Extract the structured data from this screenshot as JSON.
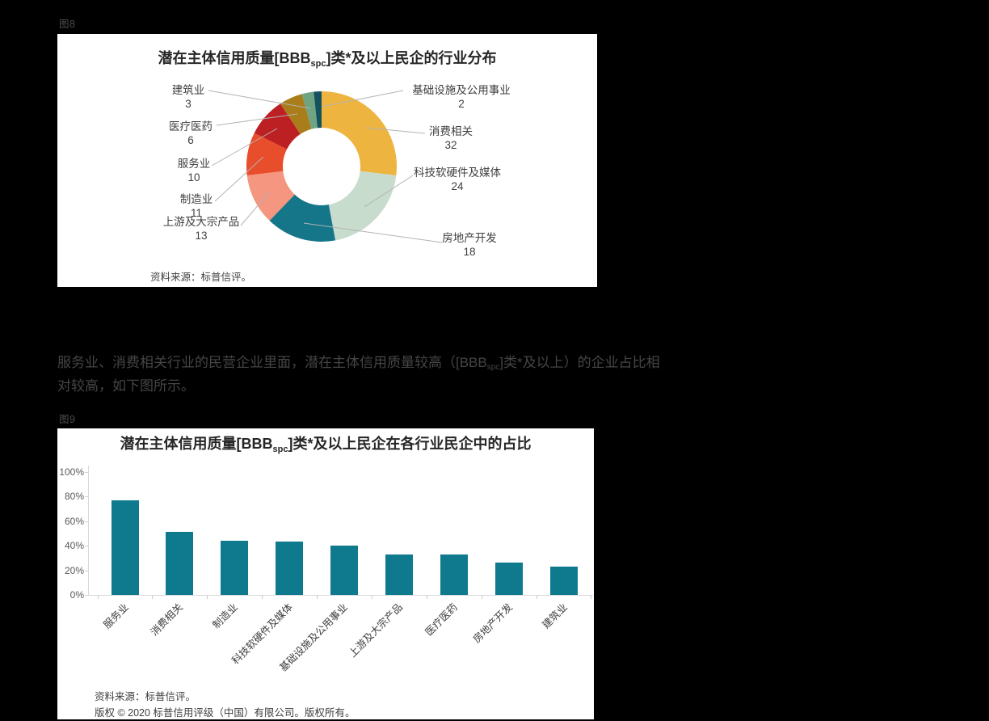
{
  "page": {
    "fig8_caption": "图8",
    "fig9_caption": "图9",
    "paragraph": {
      "line1_pre": "服务业、消费相关行业的民营企业里面，潜在主体信用质量较高（[BBB",
      "line1_sub": "spc",
      "line1_post": "]类*及以上）的企业占比相",
      "line2": "对较高，如下图所示。"
    }
  },
  "chart_data": [
    {
      "id": "figure-8",
      "type": "pie",
      "style": "donut",
      "title_pre": "潜在主体信用质量[BBB",
      "title_sub": "spc",
      "title_post": "]类*及以上民企的行业分布",
      "direction": "clockwise",
      "start_angle_deg": 0,
      "slices": [
        {
          "label": "消费相关",
          "value": 32,
          "color": "#eeb440"
        },
        {
          "label": "科技软硬件及媒体",
          "value": 24,
          "color": "#c8dccd"
        },
        {
          "label": "房地产开发",
          "value": 18,
          "color": "#15768a"
        },
        {
          "label": "上游及大宗产品",
          "value": 13,
          "color": "#f49680"
        },
        {
          "label": "制造业",
          "value": 11,
          "color": "#e84d2c"
        },
        {
          "label": "服务业",
          "value": 10,
          "color": "#bc2023"
        },
        {
          "label": "医疗医药",
          "value": 6,
          "color": "#a87d1a"
        },
        {
          "label": "建筑业",
          "value": 3,
          "color": "#6fa483"
        },
        {
          "label": "基础设施及公用事业",
          "value": 2,
          "color": "#15525f"
        }
      ],
      "source": "资料来源：标普信评。"
    },
    {
      "id": "figure-9",
      "type": "bar",
      "title_pre": "潜在主体信用质量[BBB",
      "title_sub": "spc",
      "title_post": "]类*及以上民企在各行业民企中的占比",
      "categories": [
        "服务业",
        "消费相关",
        "制造业",
        "科技软硬件及媒体",
        "基础设施及公用事业",
        "上游及大宗产品",
        "医疗医药",
        "房地产开发",
        "建筑业"
      ],
      "values": [
        77,
        51,
        44,
        43,
        40,
        33,
        33,
        26,
        23
      ],
      "unit": "%",
      "bar_color": "#0f7a8e",
      "ylim": [
        0,
        100
      ],
      "yticks": [
        "0%",
        "20%",
        "40%",
        "60%",
        "80%",
        "100%"
      ],
      "grid": false,
      "source": "资料来源：标普信评。",
      "copyright": "版权 © 2020 标普信用评级（中国）有限公司。版权所有。"
    }
  ]
}
